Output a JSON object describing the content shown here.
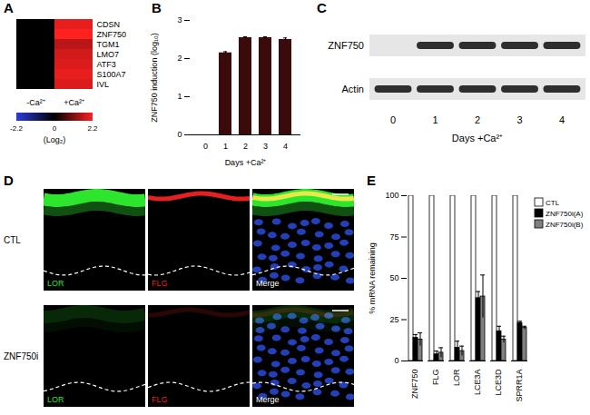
{
  "chart_data": [
    {
      "panel": "A",
      "type": "heatmap",
      "rows": [
        "CDSN",
        "ZNF750",
        "TGM1",
        "LMO7",
        "ATF3",
        "S100A7",
        "IVL"
      ],
      "columns": [
        "-Ca²⁺",
        "+Ca²⁺"
      ],
      "cells": [
        [
          0,
          2.0
        ],
        [
          0,
          2.2
        ],
        [
          0,
          1.6
        ],
        [
          0,
          1.8
        ],
        [
          0,
          1.9
        ],
        [
          0,
          2.0
        ],
        [
          0,
          1.9
        ]
      ],
      "colorbar": {
        "domain": [
          -2.2,
          0,
          2.2
        ],
        "ticks": [
          -2.2,
          0,
          2.2
        ],
        "colors": [
          "#2b3cd8",
          "#000000",
          "#ff2020"
        ],
        "label": "(Log₂)"
      }
    },
    {
      "panel": "B",
      "type": "bar",
      "categories": [
        "0",
        "1",
        "2",
        "3",
        "4"
      ],
      "values": [
        0,
        2.15,
        2.55,
        2.55,
        2.5
      ],
      "errors": [
        0,
        0.03,
        0.02,
        0.02,
        0.04
      ],
      "x_label": "Days +Ca²⁺",
      "y_label": "ZNF750 induction (log₁₀)",
      "ylim": [
        0,
        3
      ],
      "yticks": [
        0,
        1,
        2,
        3
      ],
      "color": "#3b0b0b"
    },
    {
      "panel": "E",
      "type": "bar",
      "categories": [
        "ZNF750",
        "FLG",
        "LOR",
        "LCE3A",
        "LCE3D",
        "SPRR1A"
      ],
      "series": [
        {
          "name": "CTL",
          "color": "#ffffff",
          "values": [
            100,
            100,
            100,
            100,
            100,
            100
          ]
        },
        {
          "name": "ZNF750i(A)",
          "color": "#000000",
          "values": [
            14,
            4,
            8,
            38,
            18,
            23
          ],
          "errors": [
            2,
            2,
            4,
            4,
            3,
            1
          ]
        },
        {
          "name": "ZNF750i(B)",
          "color": "#808080",
          "values": [
            13,
            5,
            6,
            39,
            13,
            20
          ],
          "errors": [
            4,
            3,
            3,
            13,
            2,
            1
          ]
        }
      ],
      "y_label": "% mRNA remaining",
      "ylim": [
        0,
        100
      ],
      "yticks": [
        0,
        25,
        50,
        75,
        100
      ],
      "legend": "top-right"
    }
  ],
  "blot": {
    "panel": "C",
    "row_labels": [
      "ZNF750",
      "Actin"
    ],
    "lanes": [
      "0",
      "1",
      "2",
      "3",
      "4"
    ],
    "x_label": "Days +Ca²⁺",
    "bands": [
      [
        false,
        true,
        true,
        true,
        true
      ],
      [
        true,
        true,
        true,
        true,
        true
      ]
    ]
  },
  "micrographs": {
    "panel": "D",
    "rows": [
      "CTL",
      "ZNF750i"
    ],
    "channels": [
      {
        "name": "LOR",
        "color": "#2ee52e"
      },
      {
        "name": "FLG",
        "color": "#e52020"
      },
      {
        "name": "Merge",
        "color": "#ffffff"
      }
    ]
  }
}
